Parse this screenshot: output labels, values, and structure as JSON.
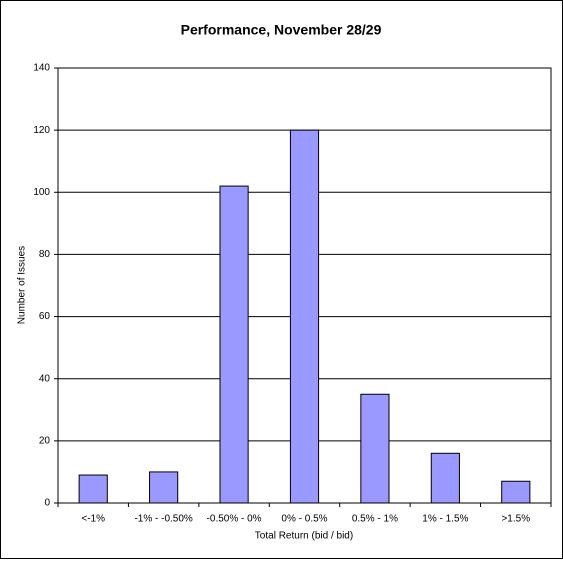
{
  "chart_data": {
    "type": "bar",
    "title": "Performance, November 28/29",
    "x_label": "Total Return (bid / bid)",
    "y_label": "Number of Issues",
    "categories": [
      "<-1%",
      "-1% - -0.50%",
      "-0.50% - 0%",
      "0% - 0.5%",
      "0.5% - 1%",
      "1% - 1.5%",
      ">1.5%"
    ],
    "values": [
      9,
      10,
      102,
      120,
      35,
      16,
      7
    ],
    "color": "#9999ff",
    "ylim": [
      0,
      140
    ],
    "yticks": [
      0,
      20,
      40,
      60,
      80,
      100,
      120,
      140
    ],
    "grid": true
  }
}
